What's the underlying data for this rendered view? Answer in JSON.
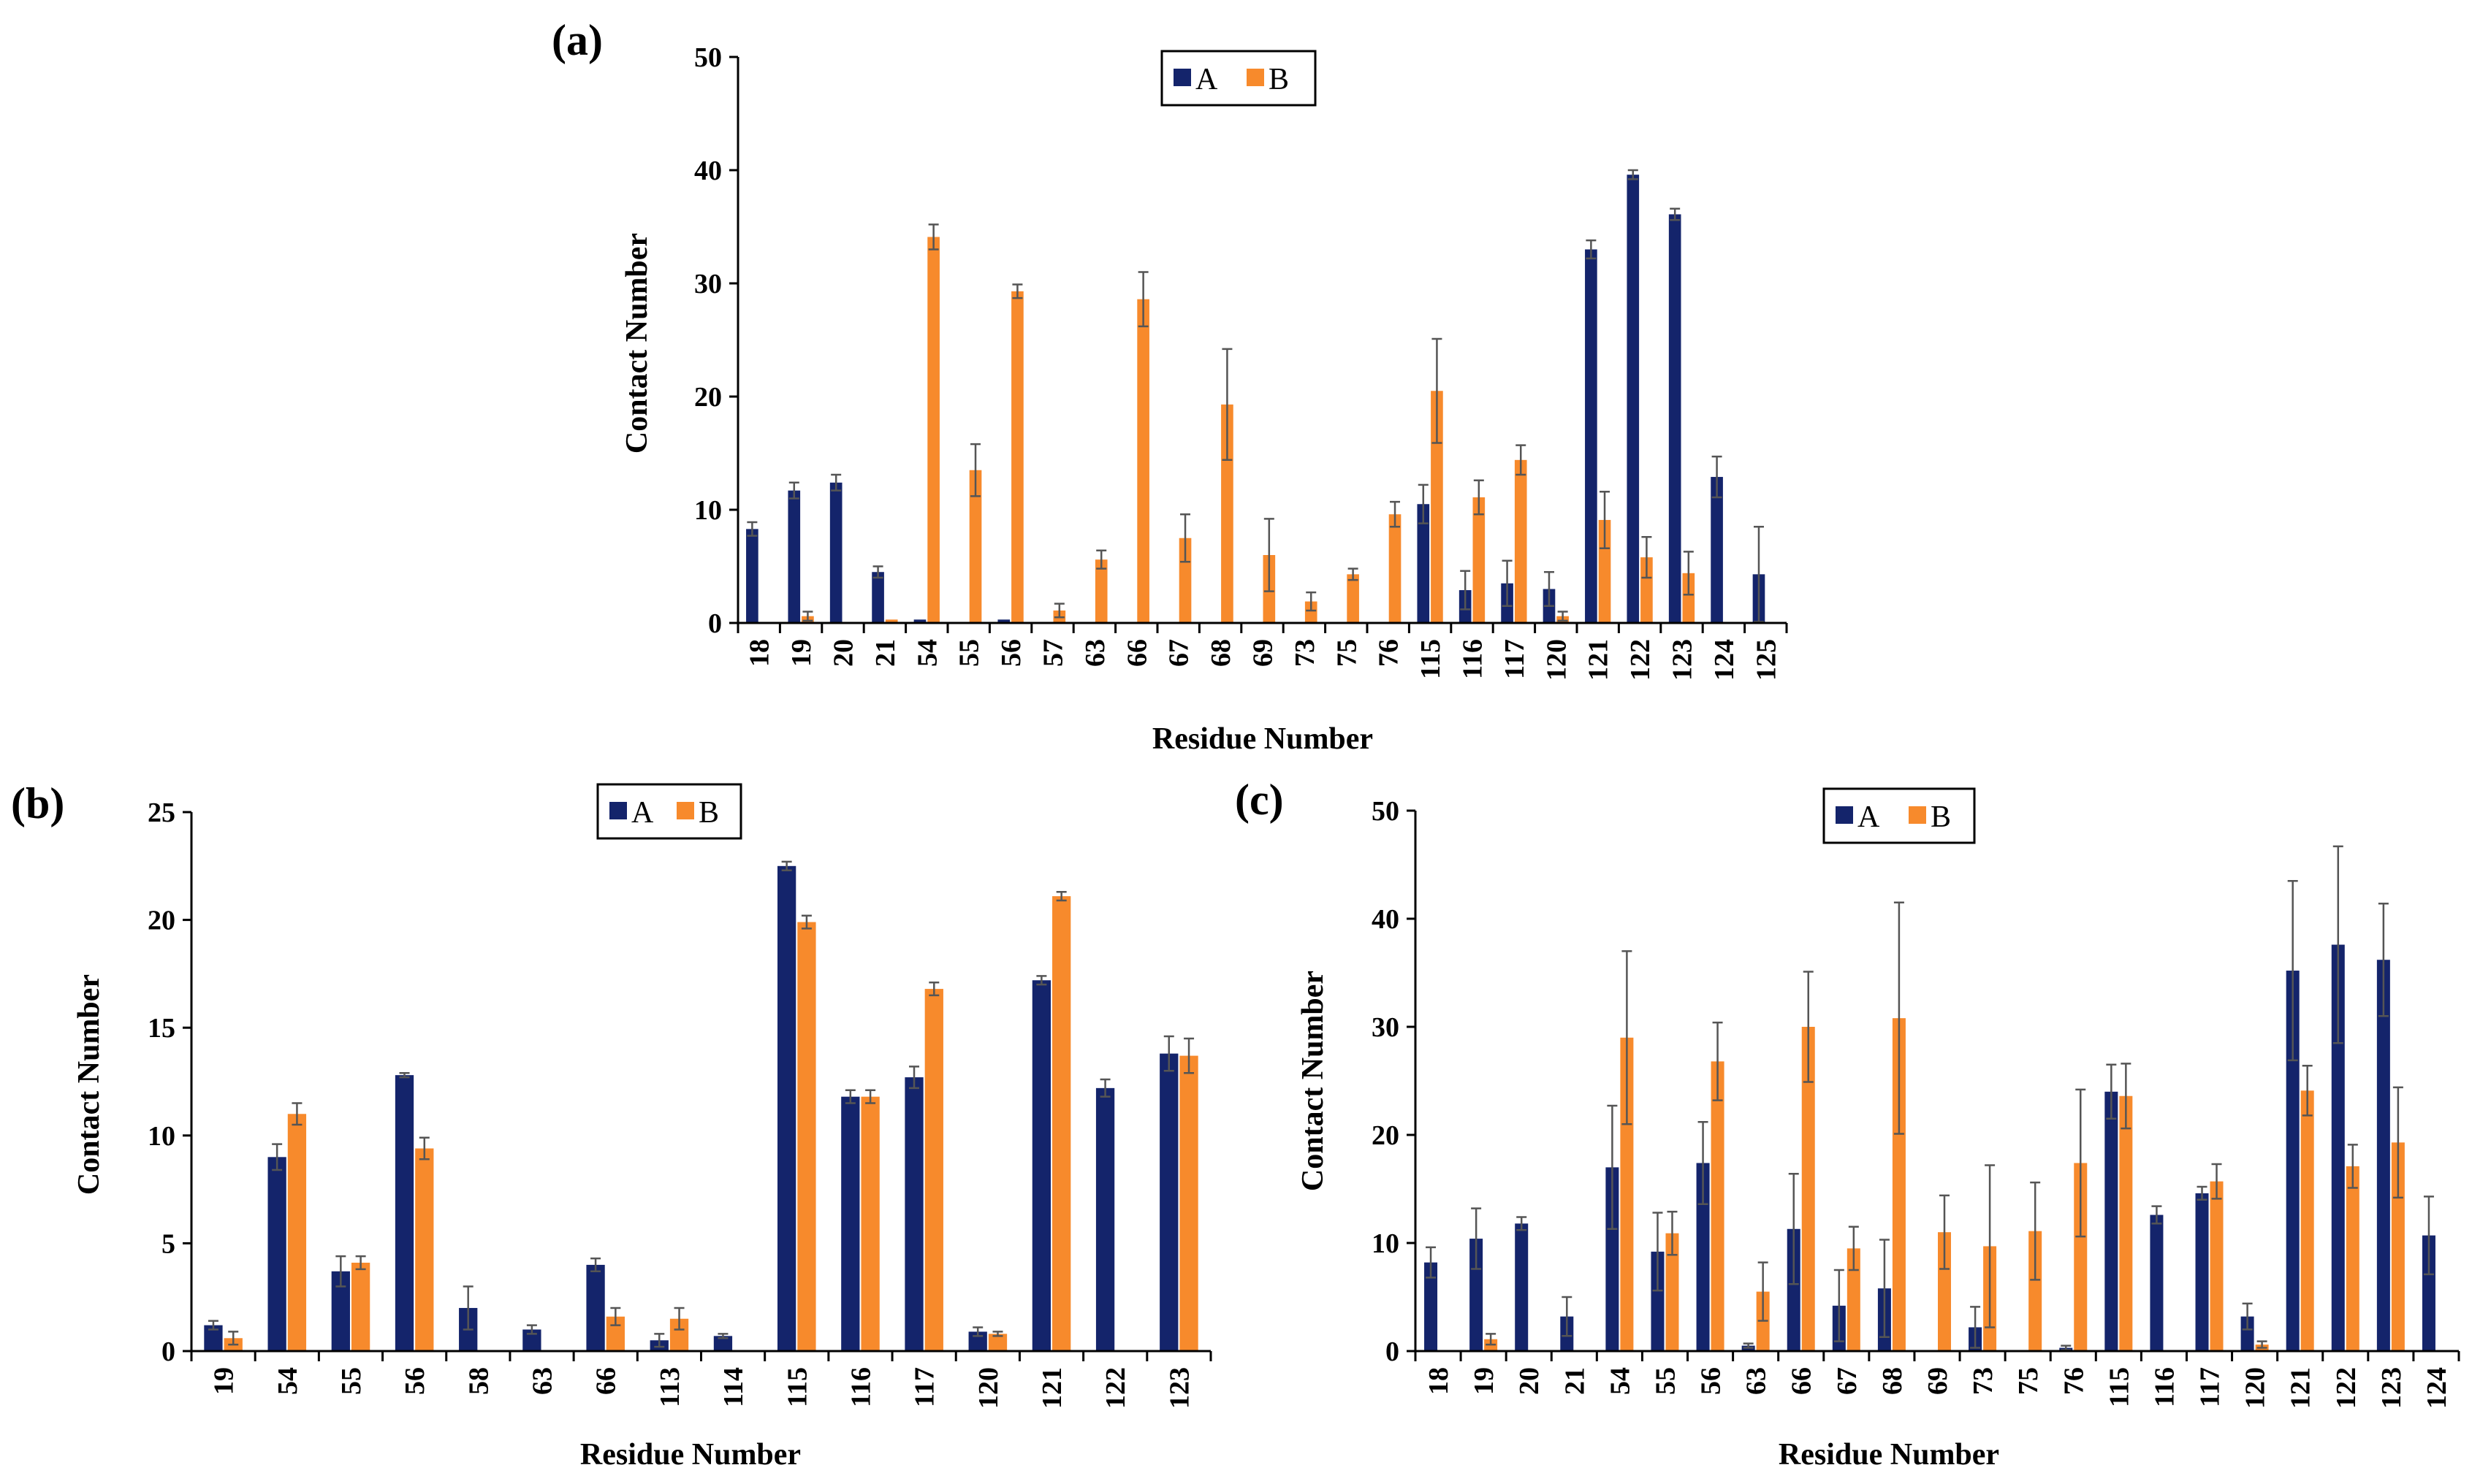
{
  "colors": {
    "A": "#14246b",
    "B": "#f78a2c"
  },
  "chart_data": [
    {
      "id": "a",
      "type": "bar",
      "panel_label": "(a)",
      "xlabel": "Residue Number",
      "ylabel": "Contact Number",
      "ylim": [
        0,
        50
      ],
      "yticks": [
        0,
        10,
        20,
        30,
        40,
        50
      ],
      "legend": [
        "A",
        "B"
      ],
      "legend_position": "top-center",
      "categories": [
        "18",
        "19",
        "20",
        "21",
        "54",
        "55",
        "56",
        "57",
        "63",
        "66",
        "67",
        "68",
        "69",
        "73",
        "75",
        "76",
        "115",
        "116",
        "117",
        "120",
        "121",
        "122",
        "123",
        "124",
        "125"
      ],
      "series": [
        {
          "name": "A",
          "values": [
            8.3,
            11.7,
            12.4,
            4.5,
            0.3,
            0,
            0.3,
            0,
            0,
            0,
            0,
            0,
            0,
            0,
            0,
            0,
            10.5,
            2.9,
            3.5,
            3.0,
            33.0,
            39.6,
            36.1,
            12.9,
            4.3
          ],
          "errors": [
            0.6,
            0.7,
            0.7,
            0.5,
            0,
            0,
            0,
            0,
            0,
            0,
            0,
            0,
            0,
            0,
            0,
            0,
            1.7,
            1.7,
            2.0,
            1.5,
            0.8,
            0.4,
            0.5,
            1.8,
            4.2
          ]
        },
        {
          "name": "B",
          "values": [
            0,
            0.6,
            0,
            0.3,
            34.1,
            13.5,
            29.3,
            1.1,
            5.6,
            28.6,
            7.5,
            19.3,
            6.0,
            1.9,
            4.3,
            9.6,
            20.5,
            11.1,
            14.4,
            0.6,
            9.1,
            5.8,
            4.4,
            0,
            0
          ],
          "errors": [
            0,
            0.4,
            0,
            0,
            1.1,
            2.3,
            0.6,
            0.6,
            0.8,
            2.4,
            2.1,
            4.9,
            3.2,
            0.8,
            0.5,
            1.1,
            4.6,
            1.5,
            1.3,
            0.4,
            2.5,
            1.8,
            1.9,
            0,
            0
          ]
        }
      ]
    },
    {
      "id": "b",
      "type": "bar",
      "panel_label": "(b)",
      "xlabel": "Residue Number",
      "ylabel": "Contact Number",
      "ylim": [
        0,
        25
      ],
      "yticks": [
        0,
        5,
        10,
        15,
        20,
        25
      ],
      "legend": [
        "A",
        "B"
      ],
      "legend_position": "top-center",
      "categories": [
        "19",
        "54",
        "55",
        "56",
        "58",
        "63",
        "66",
        "113",
        "114",
        "115",
        "116",
        "117",
        "120",
        "121",
        "122",
        "123"
      ],
      "series": [
        {
          "name": "A",
          "values": [
            1.2,
            9.0,
            3.7,
            12.8,
            2.0,
            1.0,
            4.0,
            0.5,
            0.7,
            22.5,
            11.8,
            12.7,
            0.9,
            17.2,
            12.2,
            13.8
          ],
          "errors": [
            0.2,
            0.6,
            0.7,
            0.1,
            1.0,
            0.2,
            0.3,
            0.3,
            0.1,
            0.2,
            0.3,
            0.5,
            0.2,
            0.2,
            0.4,
            0.8
          ]
        },
        {
          "name": "B",
          "values": [
            0.6,
            11.0,
            4.1,
            9.4,
            0,
            0,
            1.6,
            1.5,
            0,
            19.9,
            11.8,
            16.8,
            0.8,
            21.1,
            0,
            13.7
          ],
          "errors": [
            0.3,
            0.5,
            0.3,
            0.5,
            0,
            0,
            0.4,
            0.5,
            0,
            0.3,
            0.3,
            0.3,
            0.1,
            0.2,
            0,
            0.8
          ]
        }
      ]
    },
    {
      "id": "c",
      "type": "bar",
      "panel_label": "(c)",
      "xlabel": "Residue Number",
      "ylabel": "Contact Number",
      "ylim": [
        0,
        50
      ],
      "yticks": [
        0,
        10,
        20,
        30,
        40,
        50
      ],
      "legend": [
        "A",
        "B"
      ],
      "legend_position": "top-center",
      "categories": [
        "18",
        "19",
        "20",
        "21",
        "54",
        "55",
        "56",
        "63",
        "66",
        "67",
        "68",
        "69",
        "73",
        "75",
        "76",
        "115",
        "116",
        "117",
        "120",
        "121",
        "122",
        "123",
        "124"
      ],
      "series": [
        {
          "name": "A",
          "values": [
            8.2,
            10.4,
            11.8,
            3.2,
            17.0,
            9.2,
            17.4,
            0.5,
            11.3,
            4.2,
            5.8,
            0,
            2.2,
            0,
            0.3,
            24.0,
            12.6,
            14.6,
            3.2,
            35.2,
            37.6,
            36.2,
            10.7
          ],
          "errors": [
            1.4,
            2.8,
            0.6,
            1.8,
            5.7,
            3.6,
            3.8,
            0.2,
            5.1,
            3.3,
            4.5,
            0,
            1.9,
            0,
            0.2,
            2.5,
            0.8,
            0.6,
            1.2,
            8.3,
            9.1,
            5.2,
            3.6
          ]
        },
        {
          "name": "B",
          "values": [
            0,
            1.1,
            0,
            0,
            29.0,
            10.9,
            26.8,
            5.5,
            30.0,
            9.5,
            30.8,
            11.0,
            9.7,
            11.1,
            17.4,
            23.6,
            0,
            15.7,
            0.6,
            24.1,
            17.1,
            19.3,
            0
          ],
          "errors": [
            0,
            0.5,
            0,
            0,
            8.0,
            2.0,
            3.6,
            2.7,
            5.1,
            2.0,
            10.7,
            3.4,
            7.5,
            4.5,
            6.8,
            3.0,
            0,
            1.6,
            0.3,
            2.3,
            2.0,
            5.1,
            0
          ]
        }
      ]
    }
  ]
}
